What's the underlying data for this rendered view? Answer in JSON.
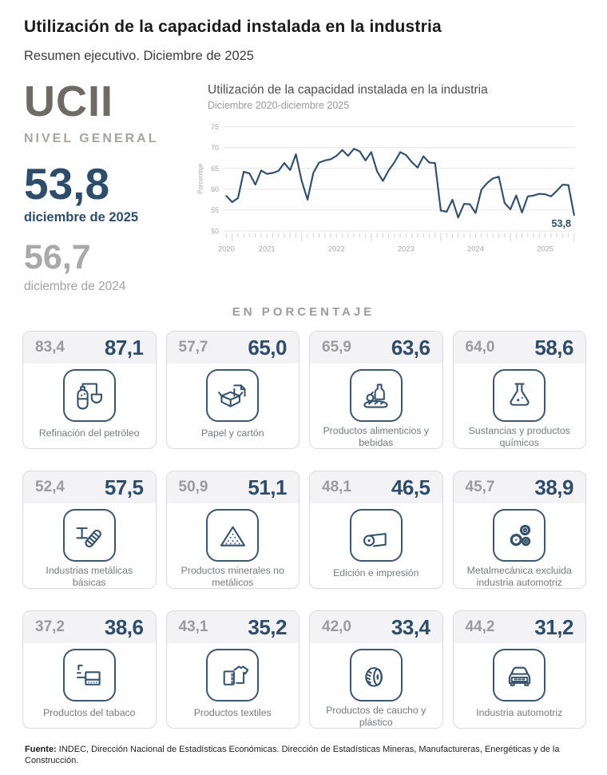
{
  "header": {
    "title": "Utilización de la capacidad instalada en la industria",
    "subtitle": "Resumen ejecutivo. Diciembre de 2025"
  },
  "summary": {
    "acronym": "UCII",
    "level_label": "NIVEL GENERAL",
    "current": {
      "value": "53,8",
      "label": "diciembre de 2025"
    },
    "previous": {
      "value": "56,7",
      "label": "diciembre de 2024"
    }
  },
  "chart_data": {
    "type": "line",
    "title": "Utilización de la capacidad instalada en la industria",
    "subtitle": "Diciembre 2020-diciembre 2025",
    "ylabel": "Porcentaje",
    "ylim": [
      50,
      75
    ],
    "yticks": [
      50,
      55,
      60,
      65,
      70,
      75
    ],
    "x_unit": "month",
    "x_start": "diciembre 2020",
    "x_end": "diciembre 2025",
    "grid": true,
    "line_color": "#31506e",
    "end_annotation": "53,8",
    "year_labels": [
      {
        "label": "2020",
        "month_index": 0
      },
      {
        "label": "2021",
        "month_index": 7
      },
      {
        "label": "2022",
        "month_index": 19
      },
      {
        "label": "2023",
        "month_index": 31
      },
      {
        "label": "2024",
        "month_index": 43
      },
      {
        "label": "2025",
        "month_index": 55
      }
    ],
    "values": [
      58.4,
      56.9,
      57.9,
      64.2,
      63.8,
      61.1,
      64.5,
      63.7,
      63.9,
      64.4,
      66.3,
      64.6,
      68.4,
      62.0,
      57.5,
      63.9,
      66.4,
      66.9,
      67.2,
      68.0,
      69.4,
      68.0,
      69.7,
      69.1,
      66.9,
      68.9,
      64.3,
      62.0,
      64.5,
      66.5,
      68.9,
      68.2,
      66.5,
      65.2,
      67.9,
      66.4,
      66.3,
      54.9,
      54.6,
      57.5,
      53.2,
      56.5,
      56.4,
      54.3,
      59.9,
      61.5,
      62.6,
      63.0,
      56.7,
      55.2,
      58.5,
      54.4,
      58.3,
      58.5,
      58.9,
      58.8,
      58.3,
      59.6,
      61.1,
      61.0,
      53.8
    ]
  },
  "section_label": "EN PORCENTAJE",
  "cards": [
    {
      "previous": "83,4",
      "current": "87,1",
      "label": "Refinación del petróleo",
      "icon": "oil-refinery-icon"
    },
    {
      "previous": "57,7",
      "current": "65,0",
      "label": "Papel y cartón",
      "icon": "cardboard-box-icon"
    },
    {
      "previous": "65,9",
      "current": "63,6",
      "label": "Productos alimenticios y bebidas",
      "icon": "food-beverage-icon"
    },
    {
      "previous": "64,0",
      "current": "58,6",
      "label": "Sustancias y productos químicos",
      "icon": "chemical-flask-icon"
    },
    {
      "previous": "52,4",
      "current": "57,5",
      "label": "Industrias metálicas básicas",
      "icon": "steel-beam-icon"
    },
    {
      "previous": "50,9",
      "current": "51,1",
      "label": "Productos minerales no metálicos",
      "icon": "mineral-pile-icon"
    },
    {
      "previous": "48,1",
      "current": "46,5",
      "label": "Edición e impresión",
      "icon": "paper-roll-icon"
    },
    {
      "previous": "45,7",
      "current": "38,9",
      "label": "Metalmecánica excluida industria automotriz",
      "icon": "gears-icon"
    },
    {
      "previous": "37,2",
      "current": "38,6",
      "label": "Productos del tabaco",
      "icon": "cigarette-pack-icon"
    },
    {
      "previous": "43,1",
      "current": "35,2",
      "label": "Productos textiles",
      "icon": "tshirt-icon"
    },
    {
      "previous": "42,0",
      "current": "33,4",
      "label": "Productos de caucho y plástico",
      "icon": "tire-icon"
    },
    {
      "previous": "44,2",
      "current": "31,2",
      "label": "Industria automotriz",
      "icon": "car-icon"
    }
  ],
  "footer": {
    "source_label": "Fuente:",
    "source_text": " INDEC, Dirección Nacional de Estadísticas Económicas. Dirección de Estadísticas Mineras, Manufactureras, Energéticas y de la Construcción."
  },
  "colors": {
    "accent_navy": "#2e4d6b",
    "muted_gray": "#9b9b9b",
    "band_gray": "#f3f3f5",
    "line": "#31506e"
  }
}
